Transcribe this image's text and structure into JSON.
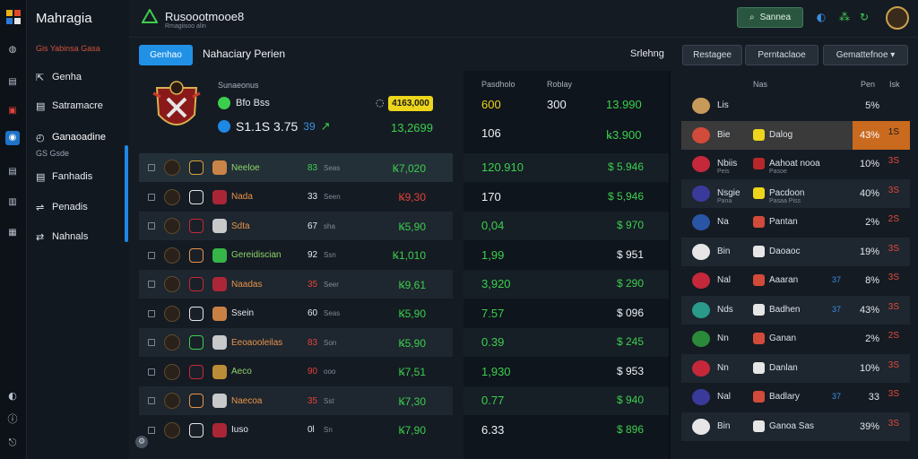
{
  "app": {
    "title": "Mahragia",
    "sidebar_sub": "Gis Yabinsa Gasa"
  },
  "nav": {
    "items": [
      {
        "label": "Genha",
        "icon": "share-icon"
      },
      {
        "label": "Satramacre",
        "icon": "document-icon"
      },
      {
        "label": "Ganaoadine",
        "icon": "chart-icon",
        "sub": "GS Gsde"
      },
      {
        "label": "Fanhadis",
        "icon": "document-icon"
      },
      {
        "label": "Penadis",
        "icon": "switch-icon"
      },
      {
        "label": "Nahnals",
        "icon": "swap-icon"
      }
    ]
  },
  "brand": {
    "title": "Rusoootmooe8",
    "subtitle": "Rmagiisoo alin"
  },
  "header": {
    "search_label": "Sannea"
  },
  "tabs": {
    "active": "Genhao",
    "title": "Nahaciary Perien"
  },
  "filters": {
    "label": "Srlehng",
    "buttons": [
      "Restagee",
      "Perntaclaoe",
      "Gemattefnoe ▾"
    ]
  },
  "hero": {
    "label": "Sunaeonus",
    "line_a": "Bfo Bss",
    "line_b": "S1.1S 3.75",
    "line_b_tag": "39",
    "pill": "4163,000",
    "right_value": "13,2699"
  },
  "left_rows": [
    {
      "name": "Neeloe",
      "num": "83",
      "sub": "Seas",
      "val": "Ꝃ7,020",
      "name_color": "#8ed36a",
      "num_color": "#3ccf4e",
      "val_color": "#3ccf4e"
    },
    {
      "name": "Nada",
      "num": "33",
      "sub": "Seen",
      "val": "Ꝃ9,30",
      "name_color": "#e8934a",
      "num_color": "#e6e9ed",
      "val_color": "#e2433a"
    },
    {
      "name": "Sdta",
      "num": "67",
      "sub": "sha",
      "val": "Ꝃ5,90",
      "name_color": "#e8934a",
      "num_color": "#e6e9ed",
      "val_color": "#3ccf4e"
    },
    {
      "name": "Gereidiscian",
      "num": "92",
      "sub": "Ssn",
      "val": "Ꝃ1,010",
      "name_color": "#8ed36a",
      "num_color": "#e6e9ed",
      "val_color": "#3ccf4e"
    },
    {
      "name": "Naadas",
      "num": "35",
      "sub": "Seer",
      "val": "Ꝃ9,61",
      "name_color": "#e8934a",
      "num_color": "#e2433a",
      "val_color": "#3ccf4e"
    },
    {
      "name": "Ssein",
      "num": "60",
      "sub": "Seas",
      "val": "Ꝃ5,90",
      "name_color": "#e6e9ed",
      "num_color": "#e6e9ed",
      "val_color": "#3ccf4e"
    },
    {
      "name": "Eeoaooleilas",
      "num": "83",
      "sub": "Son",
      "val": "Ꝃ5,90",
      "name_color": "#e8934a",
      "num_color": "#e2433a",
      "val_color": "#3ccf4e"
    },
    {
      "name": "Aeco",
      "num": "90",
      "sub": "ooo",
      "val": "Ꝃ7,51",
      "name_color": "#8ed36a",
      "num_color": "#e2433a",
      "val_color": "#3ccf4e"
    },
    {
      "name": "Naecoa",
      "num": "35",
      "sub": "Sst",
      "val": "Ꝃ7,30",
      "name_color": "#e8934a",
      "num_color": "#e2433a",
      "val_color": "#3ccf4e"
    },
    {
      "name": "Iuso",
      "num": "0l",
      "sub": "Sn",
      "val": "Ꝃ7,90",
      "name_color": "#e6e9ed",
      "num_color": "#e6e9ed",
      "val_color": "#3ccf4e"
    }
  ],
  "mid": {
    "head_a": "Pasdholo",
    "head_b": "Roblay",
    "top": [
      {
        "a": "600",
        "b": "300",
        "c": "13.990"
      },
      {
        "a": "106",
        "b": "",
        "c": "ꝃ3.900"
      }
    ],
    "rows": [
      {
        "a": "120.910",
        "b": "$ 5.946",
        "a_color": "#3ccf4e",
        "b_color": "#3ccf4e"
      },
      {
        "a": "170",
        "b": "$ 5,946",
        "a_color": "#eef1f5",
        "b_color": "#3ccf4e"
      },
      {
        "a": "0,04",
        "b": "$ 970",
        "a_color": "#3ccf4e",
        "b_color": "#3ccf4e"
      },
      {
        "a": "1,99",
        "b": "$ 951",
        "a_color": "#3ccf4e",
        "b_color": "#eef1f5"
      },
      {
        "a": "3,920",
        "b": "$ 290",
        "a_color": "#3ccf4e",
        "b_color": "#3ccf4e"
      },
      {
        "a": "7.57",
        "b": "$ 096",
        "a_color": "#3ccf4e",
        "b_color": "#eef1f5"
      },
      {
        "a": "0.39",
        "b": "$ 245",
        "a_color": "#3ccf4e",
        "b_color": "#3ccf4e"
      },
      {
        "a": "1,930",
        "b": "$ 953",
        "a_color": "#3ccf4e",
        "b_color": "#eef1f5"
      },
      {
        "a": "0.77",
        "b": "$ 940",
        "a_color": "#3ccf4e",
        "b_color": "#3ccf4e"
      },
      {
        "a": "6.33",
        "b": "$ 896",
        "a_color": "#eef1f5",
        "b_color": "#3ccf4e"
      }
    ]
  },
  "right": {
    "head_a": "Nas",
    "head_b": "Pen",
    "head_c": "Isk",
    "rows": [
      {
        "n": "Lis",
        "sub": "",
        "badge": "",
        "name": "",
        "name_sub": "",
        "extra": "",
        "pct": "5%",
        "stat": "",
        "logo": "#c89a5a",
        "badge_color": "#ffffff",
        "hl": false
      },
      {
        "n": "Bie",
        "sub": "",
        "badge": "",
        "name": "Dalog",
        "name_sub": "",
        "extra": "",
        "pct": "43%",
        "stat": "1S",
        "logo": "#d24a3a",
        "badge_color": "#ecd51b",
        "hl": true
      },
      {
        "n": "Nbiis",
        "sub": "Peis",
        "badge": "",
        "name": "Aahoat nooa",
        "name_sub": "Pasoe",
        "extra": "",
        "pct": "10%",
        "stat": "3S",
        "logo": "#c4283a",
        "badge_color": "#b8282a",
        "hl": false
      },
      {
        "n": "Nsgie",
        "sub": "Pana",
        "badge": "",
        "name": "Pacdoon",
        "name_sub": "Pasaa Piss",
        "extra": "",
        "pct": "40%",
        "stat": "3S",
        "logo": "#3a3a9a",
        "badge_color": "#ecd51b",
        "hl": false
      },
      {
        "n": "Na",
        "sub": "",
        "badge": "",
        "name": "Pantan",
        "name_sub": "",
        "extra": "",
        "pct": "2%",
        "stat": "2S",
        "logo": "#2a55a5",
        "badge_color": "#d24a3a",
        "hl": false
      },
      {
        "n": "Bin",
        "sub": "",
        "badge": "",
        "name": "Daoaoc",
        "name_sub": "",
        "extra": "",
        "pct": "19%",
        "stat": "3S",
        "logo": "#e6e6e6",
        "badge_color": "#e6e6e6",
        "hl": false
      },
      {
        "n": "Nal",
        "sub": "",
        "badge": "",
        "name": "Aaaran",
        "name_sub": "",
        "extra": "37",
        "pct": "8%",
        "stat": "3S",
        "logo": "#c4283a",
        "badge_color": "#d24a3a",
        "hl": false
      },
      {
        "n": "Nds",
        "sub": "",
        "badge": "",
        "name": "Badhen",
        "name_sub": "",
        "extra": "37",
        "pct": "43%",
        "stat": "3S",
        "logo": "#2a9a8a",
        "badge_color": "#e6e6e6",
        "hl": false
      },
      {
        "n": "Nn",
        "sub": "",
        "badge": "",
        "name": "Ganan",
        "name_sub": "",
        "extra": "",
        "pct": "2%",
        "stat": "2S",
        "logo": "#2a8a3a",
        "badge_color": "#d24a3a",
        "hl": false
      },
      {
        "n": "Nn",
        "sub": "",
        "badge": "",
        "name": "Danlan",
        "name_sub": "",
        "extra": "",
        "pct": "10%",
        "stat": "3S",
        "logo": "#c4283a",
        "badge_color": "#e6e6e6",
        "hl": false
      },
      {
        "n": "Nal",
        "sub": "",
        "badge": "",
        "name": "Badlary",
        "name_sub": "",
        "extra": "37",
        "pct": "33",
        "stat": "3S",
        "logo": "#3a3a9a",
        "badge_color": "#d24a3a",
        "hl": false
      },
      {
        "n": "Bin",
        "sub": "",
        "badge": "",
        "name": "Ganoa Sas",
        "name_sub": "",
        "extra": "",
        "pct": "39%",
        "stat": "3S",
        "logo": "#e6e6e6",
        "badge_color": "#e6e6e6",
        "hl": false
      }
    ]
  }
}
